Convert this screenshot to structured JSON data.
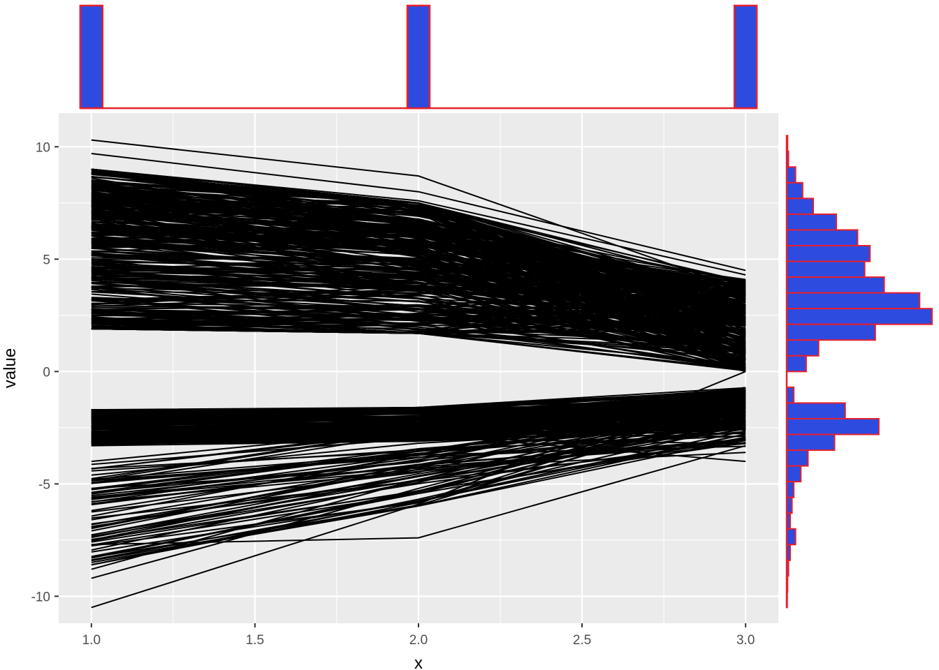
{
  "chart_data": {
    "type": "line",
    "description_kind": "parallel-coordinates with marginal histograms",
    "xlabel": "x",
    "ylabel": "value",
    "x_ticks": [
      "1.0",
      "1.5",
      "2.0",
      "2.5",
      "3.0"
    ],
    "y_ticks": [
      "-10",
      "-5",
      "0",
      "5",
      "10"
    ],
    "xlim": [
      0.9,
      3.1
    ],
    "ylim": [
      -11.2,
      11.5
    ],
    "grid": true,
    "colors": {
      "panel_bg": "#ebebeb",
      "grid_major": "#ffffff",
      "line": "#000000",
      "hist_fill": "#2e4be0",
      "hist_edge": "#e8202a",
      "tick_text": "#4d4d4d",
      "tick_mark": "#333333"
    },
    "line_bands": {
      "upper": {
        "x1": [
          1.9,
          9.0
        ],
        "x2": [
          1.7,
          7.5
        ],
        "x3": [
          0.0,
          4.1
        ],
        "count": 320
      },
      "lower": {
        "x1": [
          -3.3,
          -1.7
        ],
        "x2": [
          -3.1,
          -1.6
        ],
        "x3": [
          -2.6,
          -0.7
        ],
        "count": 160
      },
      "lower_spread": {
        "x1": [
          -8.6,
          -4.0
        ],
        "x2": [
          -6.0,
          -2.6
        ],
        "x3": [
          -3.4,
          -0.9
        ],
        "count": 60
      }
    },
    "highlighted_lines": [
      {
        "values": [
          10.3,
          8.7,
          3.6
        ]
      },
      {
        "values": [
          9.7,
          8.0,
          4.5
        ]
      },
      {
        "values": [
          9.0,
          7.6,
          4.3
        ]
      },
      {
        "values": [
          -10.5,
          -5.9,
          0.0
        ]
      },
      {
        "values": [
          -9.2,
          -5.2,
          -1.5
        ]
      },
      {
        "values": [
          -7.7,
          -7.4,
          -3.3
        ]
      },
      {
        "values": [
          -8.8,
          -4.8,
          -2.2
        ]
      },
      {
        "values": [
          -3.0,
          -2.8,
          -4.0
        ]
      },
      {
        "values": [
          -5.2,
          -4.3,
          -3.6
        ]
      }
    ],
    "top_histogram": {
      "centers": [
        1.0,
        2.0,
        3.0
      ],
      "heights": [
        1,
        1,
        1
      ]
    },
    "right_histogram": {
      "bins": [
        {
          "lo": 9.8,
          "hi": 10.5,
          "count": 0.5
        },
        {
          "lo": 9.1,
          "hi": 9.8,
          "count": 1
        },
        {
          "lo": 8.4,
          "hi": 9.1,
          "count": 5
        },
        {
          "lo": 7.7,
          "hi": 8.4,
          "count": 9
        },
        {
          "lo": 7.0,
          "hi": 7.7,
          "count": 15
        },
        {
          "lo": 6.3,
          "hi": 7.0,
          "count": 28
        },
        {
          "lo": 5.6,
          "hi": 6.3,
          "count": 40
        },
        {
          "lo": 4.9,
          "hi": 5.6,
          "count": 47
        },
        {
          "lo": 4.2,
          "hi": 4.9,
          "count": 44
        },
        {
          "lo": 3.5,
          "hi": 4.2,
          "count": 55
        },
        {
          "lo": 2.8,
          "hi": 3.5,
          "count": 75
        },
        {
          "lo": 2.1,
          "hi": 2.8,
          "count": 82
        },
        {
          "lo": 1.4,
          "hi": 2.1,
          "count": 50
        },
        {
          "lo": 0.7,
          "hi": 1.4,
          "count": 18
        },
        {
          "lo": 0.0,
          "hi": 0.7,
          "count": 11
        },
        {
          "lo": -0.7,
          "hi": 0.0,
          "count": 0
        },
        {
          "lo": -1.4,
          "hi": -0.7,
          "count": 4
        },
        {
          "lo": -2.1,
          "hi": -1.4,
          "count": 33
        },
        {
          "lo": -2.8,
          "hi": -2.1,
          "count": 52
        },
        {
          "lo": -3.5,
          "hi": -2.8,
          "count": 27
        },
        {
          "lo": -4.2,
          "hi": -3.5,
          "count": 12
        },
        {
          "lo": -4.9,
          "hi": -4.2,
          "count": 8
        },
        {
          "lo": -5.6,
          "hi": -4.9,
          "count": 4
        },
        {
          "lo": -6.3,
          "hi": -5.6,
          "count": 3
        },
        {
          "lo": -7.0,
          "hi": -6.3,
          "count": 2
        },
        {
          "lo": -7.7,
          "hi": -7.0,
          "count": 5
        },
        {
          "lo": -8.4,
          "hi": -7.7,
          "count": 2
        },
        {
          "lo": -9.1,
          "hi": -8.4,
          "count": 1
        },
        {
          "lo": -9.8,
          "hi": -9.1,
          "count": 0.5
        },
        {
          "lo": -10.5,
          "hi": -9.8,
          "count": 0.3
        }
      ]
    }
  }
}
